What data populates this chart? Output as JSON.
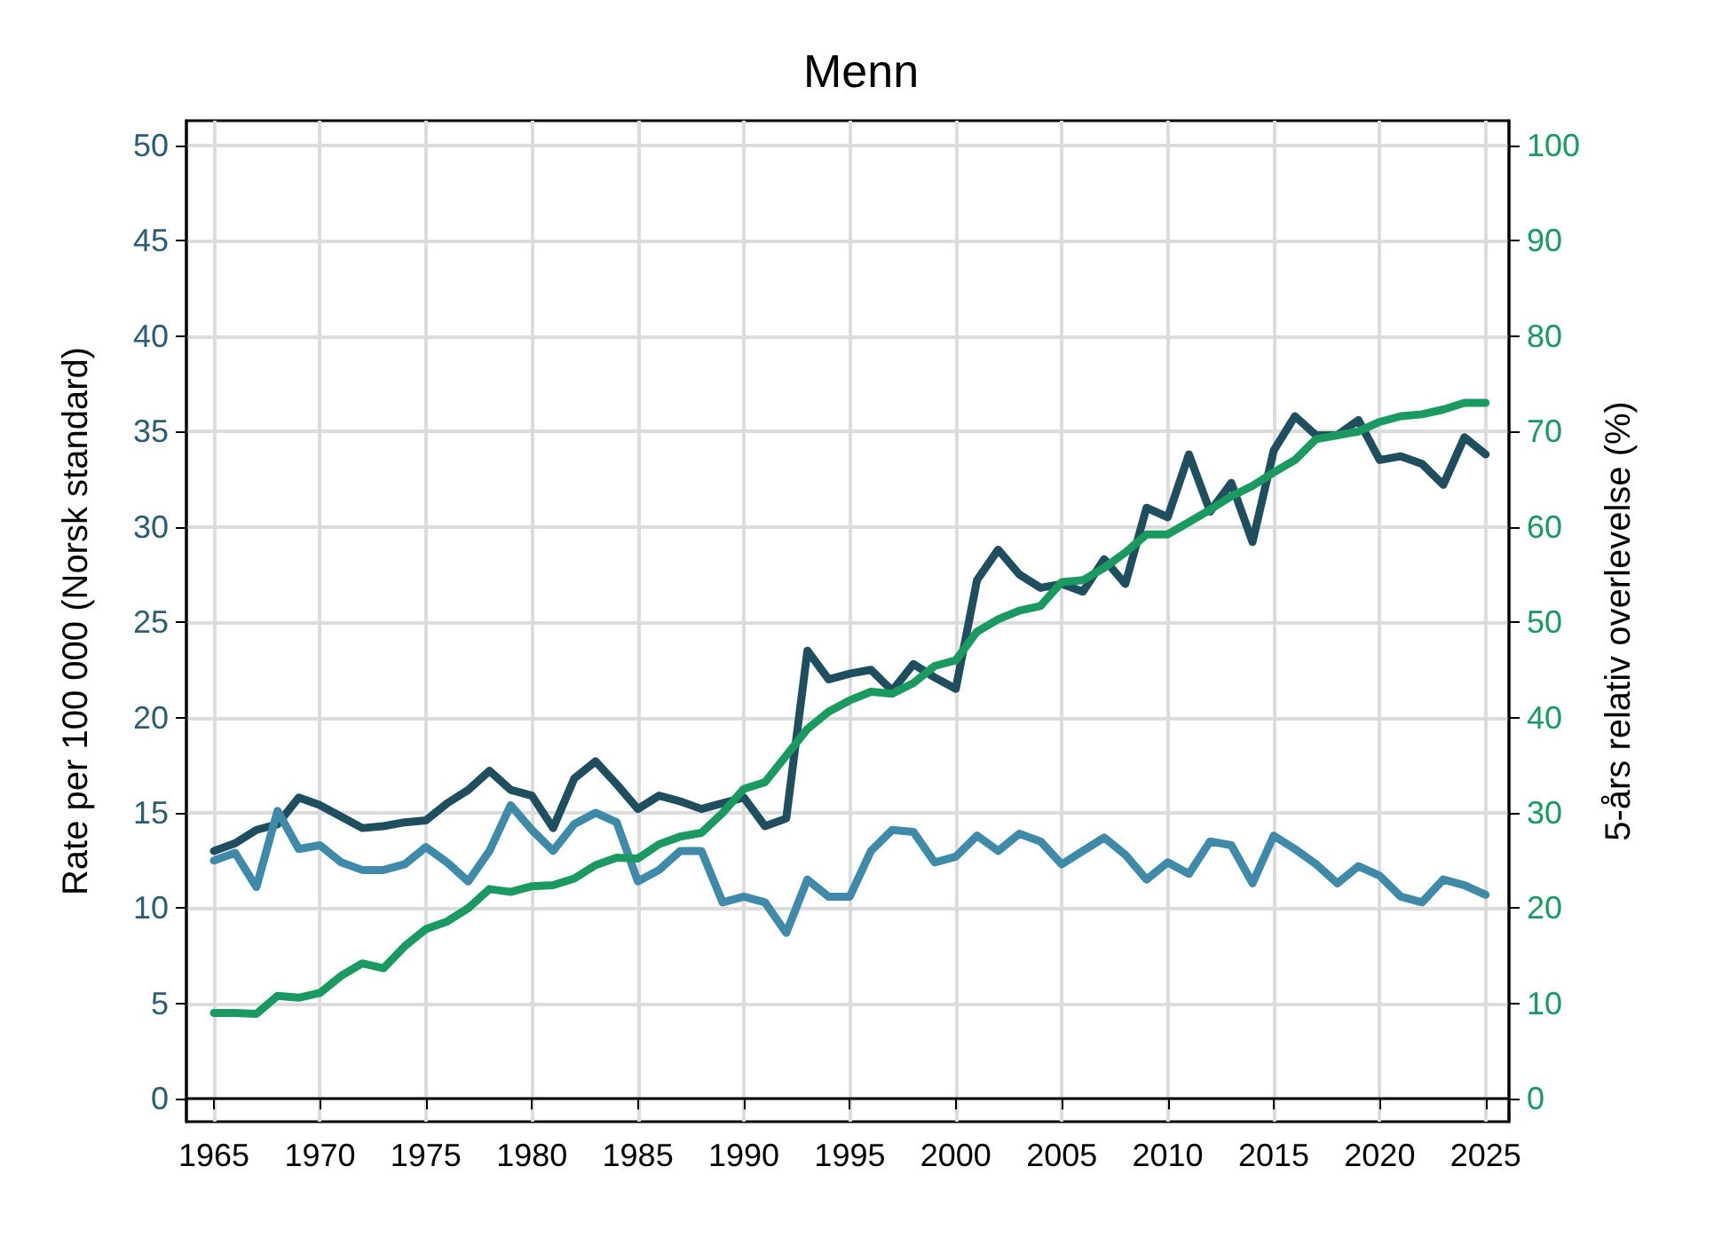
{
  "chart_data": {
    "type": "line",
    "title": "Menn",
    "ylabel": "Rate per 100 000 (Norsk standard)",
    "y2label": "5-års relativ overlevelse (%)",
    "x": [
      1965,
      1966,
      1967,
      1968,
      1969,
      1970,
      1971,
      1972,
      1973,
      1974,
      1975,
      1976,
      1977,
      1978,
      1979,
      1980,
      1981,
      1982,
      1983,
      1984,
      1985,
      1986,
      1987,
      1988,
      1989,
      1990,
      1991,
      1992,
      1993,
      1994,
      1995,
      1996,
      1997,
      1998,
      1999,
      2000,
      2001,
      2002,
      2003,
      2004,
      2005,
      2006,
      2007,
      2008,
      2009,
      2010,
      2011,
      2012,
      2013,
      2014,
      2015,
      2016,
      2017,
      2018,
      2019,
      2020,
      2021,
      2022,
      2023,
      2024,
      2025
    ],
    "series": [
      {
        "color": "#1f4e5f",
        "values": [
          13.0,
          13.4,
          14.1,
          14.4,
          15.8,
          15.4,
          14.8,
          14.2,
          14.3,
          14.5,
          14.6,
          15.5,
          16.2,
          17.2,
          16.2,
          15.9,
          14.2,
          16.8,
          17.7,
          16.5,
          15.2,
          15.9,
          15.6,
          15.2,
          15.5,
          15.8,
          14.3,
          14.7,
          23.5,
          22.0,
          22.3,
          22.5,
          21.4,
          22.8,
          22.1,
          21.5,
          27.2,
          28.8,
          27.5,
          26.8,
          27.0,
          26.6,
          28.3,
          27.0,
          31.0,
          30.5,
          33.8,
          30.8,
          32.3,
          29.2,
          34.0,
          35.8,
          34.8,
          34.8,
          35.6,
          33.5,
          33.7,
          33.3,
          32.2,
          34.7,
          33.8
        ]
      },
      {
        "color": "#3e8aa8",
        "values": [
          12.5,
          12.9,
          11.1,
          15.1,
          13.1,
          13.3,
          12.4,
          12.0,
          12.0,
          12.3,
          13.2,
          12.4,
          11.4,
          13.0,
          15.4,
          14.1,
          13.0,
          14.4,
          15.0,
          14.5,
          11.4,
          12.0,
          13.0,
          13.0,
          10.3,
          10.6,
          10.3,
          8.7,
          11.5,
          10.6,
          10.6,
          13.0,
          14.1,
          14.0,
          12.4,
          12.7,
          13.8,
          13.0,
          13.9,
          13.5,
          12.3,
          13.0,
          13.7,
          12.8,
          11.5,
          12.4,
          11.8,
          13.5,
          13.3,
          11.3,
          13.8,
          13.1,
          12.3,
          11.3,
          12.2,
          11.7,
          10.6,
          10.3,
          11.5,
          11.2,
          10.7
        ]
      },
      {
        "color": "#1a9a60",
        "axis": "y2",
        "values": [
          9.0,
          9.0,
          8.9,
          10.8,
          10.6,
          11.1,
          12.9,
          14.2,
          13.7,
          16.0,
          17.8,
          18.6,
          20.0,
          22.0,
          21.7,
          22.3,
          22.4,
          23.1,
          24.5,
          25.3,
          25.2,
          26.7,
          27.5,
          27.9,
          30.0,
          32.5,
          33.2,
          36.0,
          38.8,
          40.6,
          41.8,
          42.7,
          42.5,
          43.6,
          45.4,
          46.0,
          49.0,
          50.3,
          51.2,
          51.7,
          54.2,
          54.4,
          55.7,
          57.3,
          59.2,
          59.2,
          60.5,
          61.8,
          63.2,
          64.3,
          65.7,
          67.0,
          69.2,
          69.6,
          70.0,
          71.0,
          71.6,
          71.8,
          72.3,
          73.0,
          73.0
        ]
      }
    ],
    "xlim": [
      1963.7,
      2026.1
    ],
    "xticks": [
      1965,
      1970,
      1975,
      1980,
      1985,
      1990,
      1995,
      2000,
      2005,
      2010,
      2015,
      2020,
      2025
    ],
    "ylim": [
      -1.2,
      51.3
    ],
    "yticks": [
      0,
      5,
      10,
      15,
      20,
      25,
      30,
      35,
      40,
      45,
      50
    ],
    "y2lim": [
      -2.4,
      102.6
    ],
    "y2ticks": [
      0,
      10,
      20,
      30,
      40,
      50,
      60,
      70,
      80,
      90,
      100
    ],
    "grid": true,
    "marker": "none",
    "line_style": "solid"
  }
}
